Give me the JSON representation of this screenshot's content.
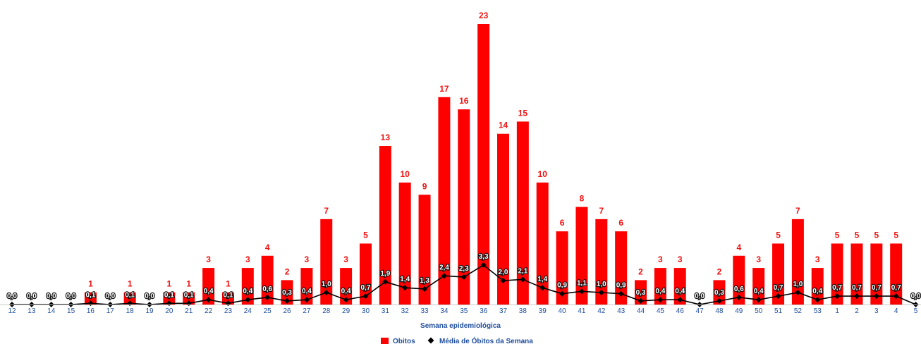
{
  "chart_data": {
    "type": "bar",
    "categories": [
      "12",
      "13",
      "14",
      "15",
      "16",
      "17",
      "18",
      "19",
      "20",
      "21",
      "22",
      "23",
      "24",
      "25",
      "26",
      "27",
      "28",
      "29",
      "30",
      "31",
      "32",
      "33",
      "34",
      "35",
      "36",
      "37",
      "38",
      "39",
      "40",
      "41",
      "42",
      "43",
      "44",
      "45",
      "46",
      "47",
      "48",
      "49",
      "50",
      "51",
      "52",
      "53",
      "1",
      "2",
      "3",
      "4",
      "5"
    ],
    "series": [
      {
        "name": "Obitos",
        "type": "bar",
        "color": "#ff0000",
        "values": [
          0,
          0,
          0,
          0,
          1,
          0,
          1,
          0,
          1,
          1,
          3,
          1,
          3,
          4,
          2,
          3,
          7,
          3,
          5,
          13,
          10,
          9,
          17,
          16,
          23,
          14,
          15,
          10,
          6,
          8,
          7,
          6,
          2,
          3,
          3,
          0,
          2,
          4,
          3,
          5,
          7,
          3,
          5,
          5,
          5,
          5,
          0
        ],
        "labels": [
          "",
          "",
          "",
          "",
          "1",
          "",
          "1",
          "",
          "1",
          "1",
          "3",
          "1",
          "3",
          "4",
          "2",
          "3",
          "7",
          "3",
          "5",
          "13",
          "10",
          "9",
          "17",
          "16",
          "23",
          "14",
          "15",
          "10",
          "6",
          "8",
          "7",
          "6",
          "2",
          "3",
          "3",
          "",
          "2",
          "4",
          "3",
          "5",
          "7",
          "3",
          "5",
          "5",
          "5",
          "5",
          ""
        ]
      },
      {
        "name": "Média de Óbitos da Semana",
        "type": "line",
        "color": "#000000",
        "values": [
          0,
          0,
          0,
          0,
          0.1,
          0,
          0.1,
          0,
          0.1,
          0.1,
          0.4,
          0.1,
          0.4,
          0.6,
          0.3,
          0.4,
          1.0,
          0.4,
          0.7,
          1.9,
          1.4,
          1.3,
          2.4,
          2.3,
          3.3,
          2.0,
          2.1,
          1.4,
          0.9,
          1.1,
          1.0,
          0.9,
          0.3,
          0.4,
          0.4,
          0,
          0.3,
          0.6,
          0.4,
          0.7,
          1.0,
          0.4,
          0.7,
          0.7,
          0.7,
          0.7,
          0
        ],
        "labels": [
          "0,0",
          "0,0",
          "0,0",
          "0,0",
          "0,1",
          "0,0",
          "0,1",
          "0,0",
          "0,1",
          "0,1",
          "0,4",
          "0,1",
          "0,4",
          "0,6",
          "0,3",
          "0,4",
          "1,0",
          "0,4",
          "0,7",
          "1,9",
          "1,4",
          "1,3",
          "2,4",
          "2,3",
          "3,3",
          "2,0",
          "2,1",
          "1,4",
          "0,9",
          "1,1",
          "1,0",
          "0,9",
          "0,3",
          "0,4",
          "0,4",
          "0,0",
          "0,3",
          "0,6",
          "0,4",
          "0,7",
          "1,0",
          "0,4",
          "0,7",
          "0,7",
          "0,7",
          "0,7",
          "0,0"
        ]
      }
    ],
    "title": "",
    "xlabel": "Semana epidemiológica",
    "ylabel": "",
    "ylim": [
      0,
      23
    ],
    "avg_ylim": [
      0,
      14
    ],
    "grid": false,
    "legend_position": "bottom-center"
  }
}
